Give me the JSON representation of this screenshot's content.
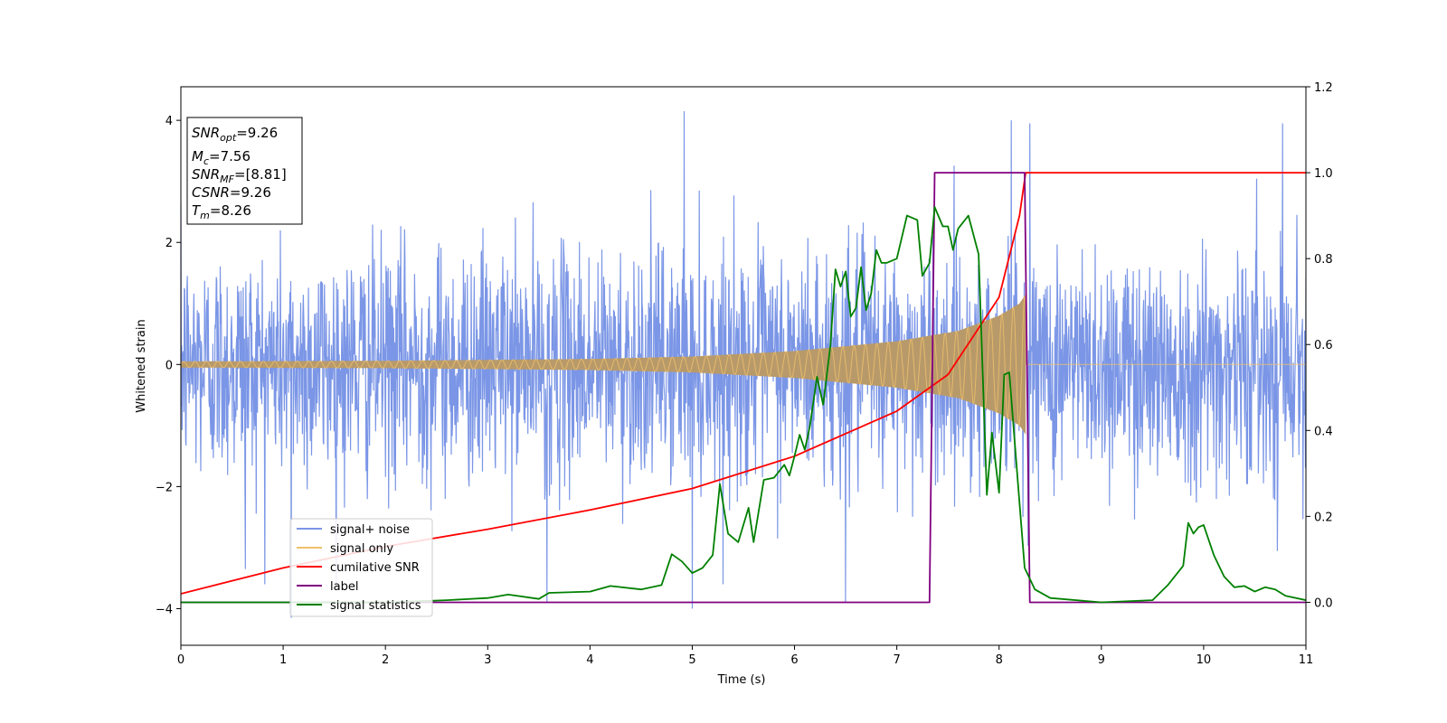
{
  "chart_data": {
    "type": "line",
    "xlabel": "Time (s)",
    "ylabel": "Whitened strain",
    "xlim": [
      0,
      11
    ],
    "ylim_left": [
      -4.6,
      4.55
    ],
    "ylim_right": [
      -0.1,
      1.2
    ],
    "x_ticks": [
      0,
      1,
      2,
      3,
      4,
      5,
      6,
      7,
      8,
      9,
      10,
      11
    ],
    "y_ticks_left": [
      -4,
      -2,
      0,
      2,
      4
    ],
    "y_ticks_right": [
      0.0,
      0.2,
      0.4,
      0.6,
      0.8,
      1.0,
      1.2
    ],
    "legend_position": "lower-left",
    "info_box": {
      "snr_opt": {
        "symbol": "SNR",
        "sub": "opt",
        "value": "=9.26"
      },
      "mc": {
        "symbol": "M",
        "sub": "c",
        "value": "=7.56"
      },
      "snr_mf": {
        "symbol": "SNR",
        "sub": "MF",
        "value": "=[8.81]"
      },
      "csnr": {
        "symbol": "CSNR",
        "sub": "",
        "value": "=9.26"
      },
      "tm": {
        "symbol": "T",
        "sub": "m",
        "value": "=8.26"
      }
    },
    "series": [
      {
        "name": "signal+ noise",
        "axis": "left",
        "color": "#7b96e6",
        "style": "noise band roughly between -2 and 2, spikes to about ±4",
        "band": [
          -2.0,
          2.0
        ],
        "spikes": [
          [
            1.08,
            -4.15
          ],
          [
            4.92,
            4.15
          ],
          [
            5.0,
            -4.0
          ],
          [
            6.5,
            -3.9
          ],
          [
            8.12,
            4.0
          ],
          [
            8.3,
            3.95
          ],
          [
            10.77,
            3.95
          ],
          [
            3.58,
            -3.9
          ],
          [
            0.63,
            -3.35
          ]
        ]
      },
      {
        "name": "signal only",
        "axis": "left",
        "color": "#f0c06a",
        "style": "chirp growing until merger at 8.26 s, then zero",
        "merger_time": 8.26,
        "amplitude_points": [
          [
            0,
            0.05
          ],
          [
            2,
            0.06
          ],
          [
            4,
            0.09
          ],
          [
            5,
            0.13
          ],
          [
            6,
            0.22
          ],
          [
            7,
            0.38
          ],
          [
            7.6,
            0.55
          ],
          [
            8.0,
            0.8
          ],
          [
            8.2,
            1.0
          ],
          [
            8.26,
            1.15
          ]
        ]
      },
      {
        "name": "cumilative SNR",
        "axis": "right",
        "color": "#ff0000",
        "points": [
          [
            0,
            0.02
          ],
          [
            1,
            0.08
          ],
          [
            2,
            0.13
          ],
          [
            3,
            0.17
          ],
          [
            4,
            0.215
          ],
          [
            5,
            0.265
          ],
          [
            6,
            0.34
          ],
          [
            7,
            0.445
          ],
          [
            7.5,
            0.53
          ],
          [
            8.0,
            0.71
          ],
          [
            8.2,
            0.9
          ],
          [
            8.26,
            1.0
          ],
          [
            11,
            1.0
          ]
        ]
      },
      {
        "name": "label",
        "axis": "right",
        "color": "#800080",
        "points": [
          [
            0,
            0
          ],
          [
            7.32,
            0
          ],
          [
            7.37,
            1.0
          ],
          [
            8.25,
            1.0
          ],
          [
            8.3,
            0
          ],
          [
            11,
            0
          ]
        ]
      },
      {
        "name": "signal statistics",
        "axis": "right",
        "color": "#008000",
        "points": [
          [
            0,
            0.0
          ],
          [
            1,
            0.0
          ],
          [
            2,
            0.0
          ],
          [
            2.6,
            0.005
          ],
          [
            3.0,
            0.01
          ],
          [
            3.2,
            0.018
          ],
          [
            3.5,
            0.008
          ],
          [
            3.6,
            0.022
          ],
          [
            4.0,
            0.025
          ],
          [
            4.2,
            0.038
          ],
          [
            4.5,
            0.03
          ],
          [
            4.7,
            0.04
          ],
          [
            4.8,
            0.112
          ],
          [
            4.9,
            0.095
          ],
          [
            5.0,
            0.068
          ],
          [
            5.1,
            0.08
          ],
          [
            5.2,
            0.11
          ],
          [
            5.27,
            0.275
          ],
          [
            5.35,
            0.16
          ],
          [
            5.45,
            0.14
          ],
          [
            5.55,
            0.22
          ],
          [
            5.6,
            0.14
          ],
          [
            5.7,
            0.285
          ],
          [
            5.8,
            0.29
          ],
          [
            5.9,
            0.32
          ],
          [
            5.95,
            0.295
          ],
          [
            6.0,
            0.34
          ],
          [
            6.05,
            0.39
          ],
          [
            6.1,
            0.355
          ],
          [
            6.15,
            0.41
          ],
          [
            6.22,
            0.525
          ],
          [
            6.28,
            0.46
          ],
          [
            6.35,
            0.595
          ],
          [
            6.4,
            0.775
          ],
          [
            6.45,
            0.735
          ],
          [
            6.5,
            0.77
          ],
          [
            6.55,
            0.665
          ],
          [
            6.6,
            0.685
          ],
          [
            6.65,
            0.78
          ],
          [
            6.7,
            0.68
          ],
          [
            6.75,
            0.72
          ],
          [
            6.8,
            0.82
          ],
          [
            6.85,
            0.79
          ],
          [
            6.9,
            0.79
          ],
          [
            7.0,
            0.8
          ],
          [
            7.1,
            0.9
          ],
          [
            7.2,
            0.89
          ],
          [
            7.25,
            0.76
          ],
          [
            7.32,
            0.79
          ],
          [
            7.37,
            0.92
          ],
          [
            7.45,
            0.875
          ],
          [
            7.5,
            0.875
          ],
          [
            7.55,
            0.82
          ],
          [
            7.6,
            0.87
          ],
          [
            7.7,
            0.9
          ],
          [
            7.8,
            0.81
          ],
          [
            7.88,
            0.25
          ],
          [
            7.93,
            0.395
          ],
          [
            8.0,
            0.255
          ],
          [
            8.05,
            0.53
          ],
          [
            8.1,
            0.535
          ],
          [
            8.18,
            0.29
          ],
          [
            8.25,
            0.08
          ],
          [
            8.35,
            0.03
          ],
          [
            8.5,
            0.01
          ],
          [
            9.0,
            0.0
          ],
          [
            9.5,
            0.005
          ],
          [
            9.65,
            0.04
          ],
          [
            9.8,
            0.085
          ],
          [
            9.85,
            0.185
          ],
          [
            9.9,
            0.16
          ],
          [
            9.95,
            0.175
          ],
          [
            10.0,
            0.18
          ],
          [
            10.1,
            0.11
          ],
          [
            10.2,
            0.06
          ],
          [
            10.3,
            0.035
          ],
          [
            10.4,
            0.038
          ],
          [
            10.5,
            0.025
          ],
          [
            10.6,
            0.035
          ],
          [
            10.7,
            0.03
          ],
          [
            10.8,
            0.015
          ],
          [
            11.0,
            0.005
          ]
        ]
      }
    ]
  }
}
